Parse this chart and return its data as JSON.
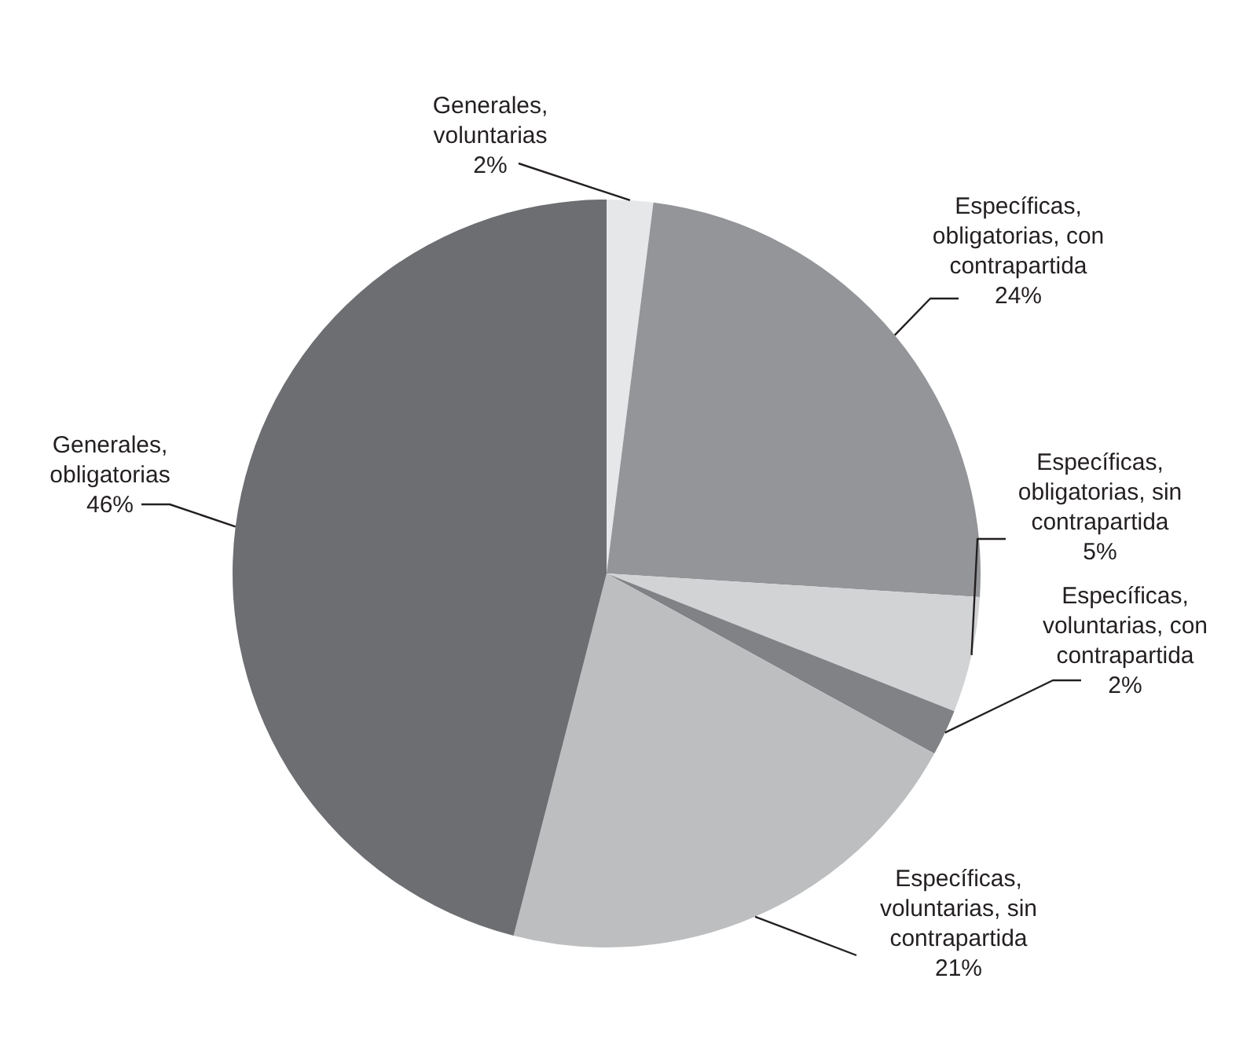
{
  "chart_data": {
    "type": "pie",
    "categories": [
      "Generales, voluntarias",
      "Específicas, obligatorias, con contrapartida",
      "Específicas, obligatorias, sin contrapartida",
      "Específicas, voluntarias, con contrapartida",
      "Específicas, voluntarias, sin contrapartida",
      "Generales, obligatorias"
    ],
    "values": [
      2,
      24,
      5,
      2,
      21,
      46
    ],
    "colors": [
      "#e6e7e8",
      "#939598",
      "#d1d3d4",
      "#808285",
      "#bcbec0",
      "#6d6e71"
    ],
    "value_labels": [
      "2%",
      "24%",
      "5%",
      "2%",
      "21%",
      "46%"
    ]
  }
}
